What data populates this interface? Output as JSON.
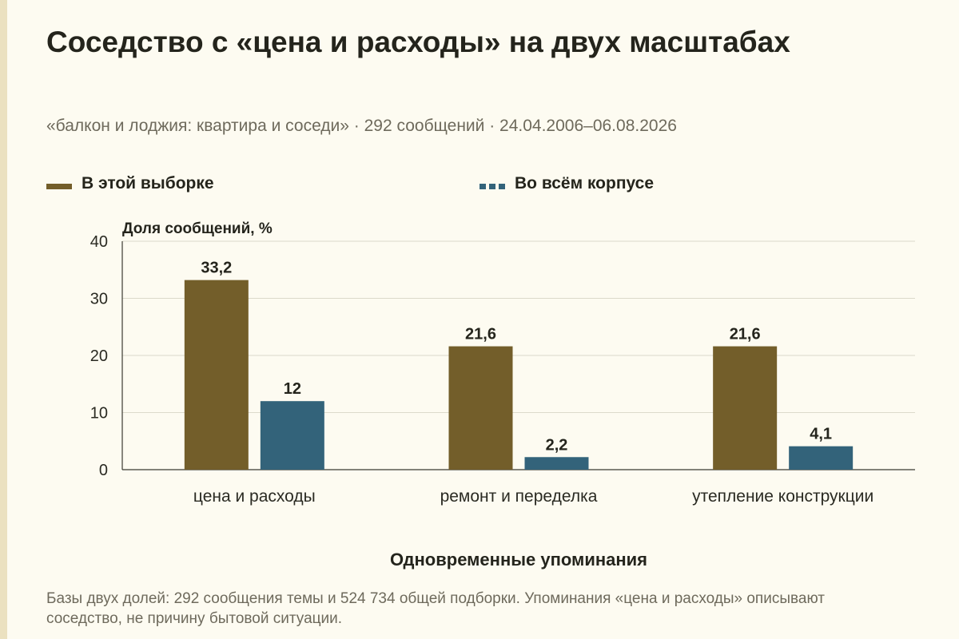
{
  "header": {
    "title": "Соседство с «цена и расходы» на двух масштабах",
    "subtitle": "«балкон и лоджия: квартира и соседи» · 292 сообщений · 24.04.2006–06.08.2026"
  },
  "note": "Базы двух долей: 292 сообщения темы и 524 734 общей подборки. Упоминания «цена и расходы» описывают соседство, не причину бытовой ситуации.",
  "chart_data": {
    "type": "bar",
    "categories": [
      "цена и расходы",
      "ремонт и переделка",
      "утепление конструкции"
    ],
    "series": [
      {
        "name": "В этой выборке",
        "values": [
          33.2,
          21.6,
          21.6
        ],
        "labels": [
          "33,2",
          "21,6",
          "21,6"
        ],
        "color": "#735e2a"
      },
      {
        "name": "Во всём корпусе",
        "values": [
          12,
          2.2,
          4.1
        ],
        "labels": [
          "12",
          "2,2",
          "4,1"
        ],
        "color": "#33637a"
      }
    ],
    "ylabel": "Доля сообщений, %",
    "xlabel": "Одновременные упоминания",
    "ylim": [
      0,
      40
    ],
    "yticks": [
      0,
      10,
      20,
      30,
      40
    ],
    "grid": true,
    "legend_position": "top"
  }
}
